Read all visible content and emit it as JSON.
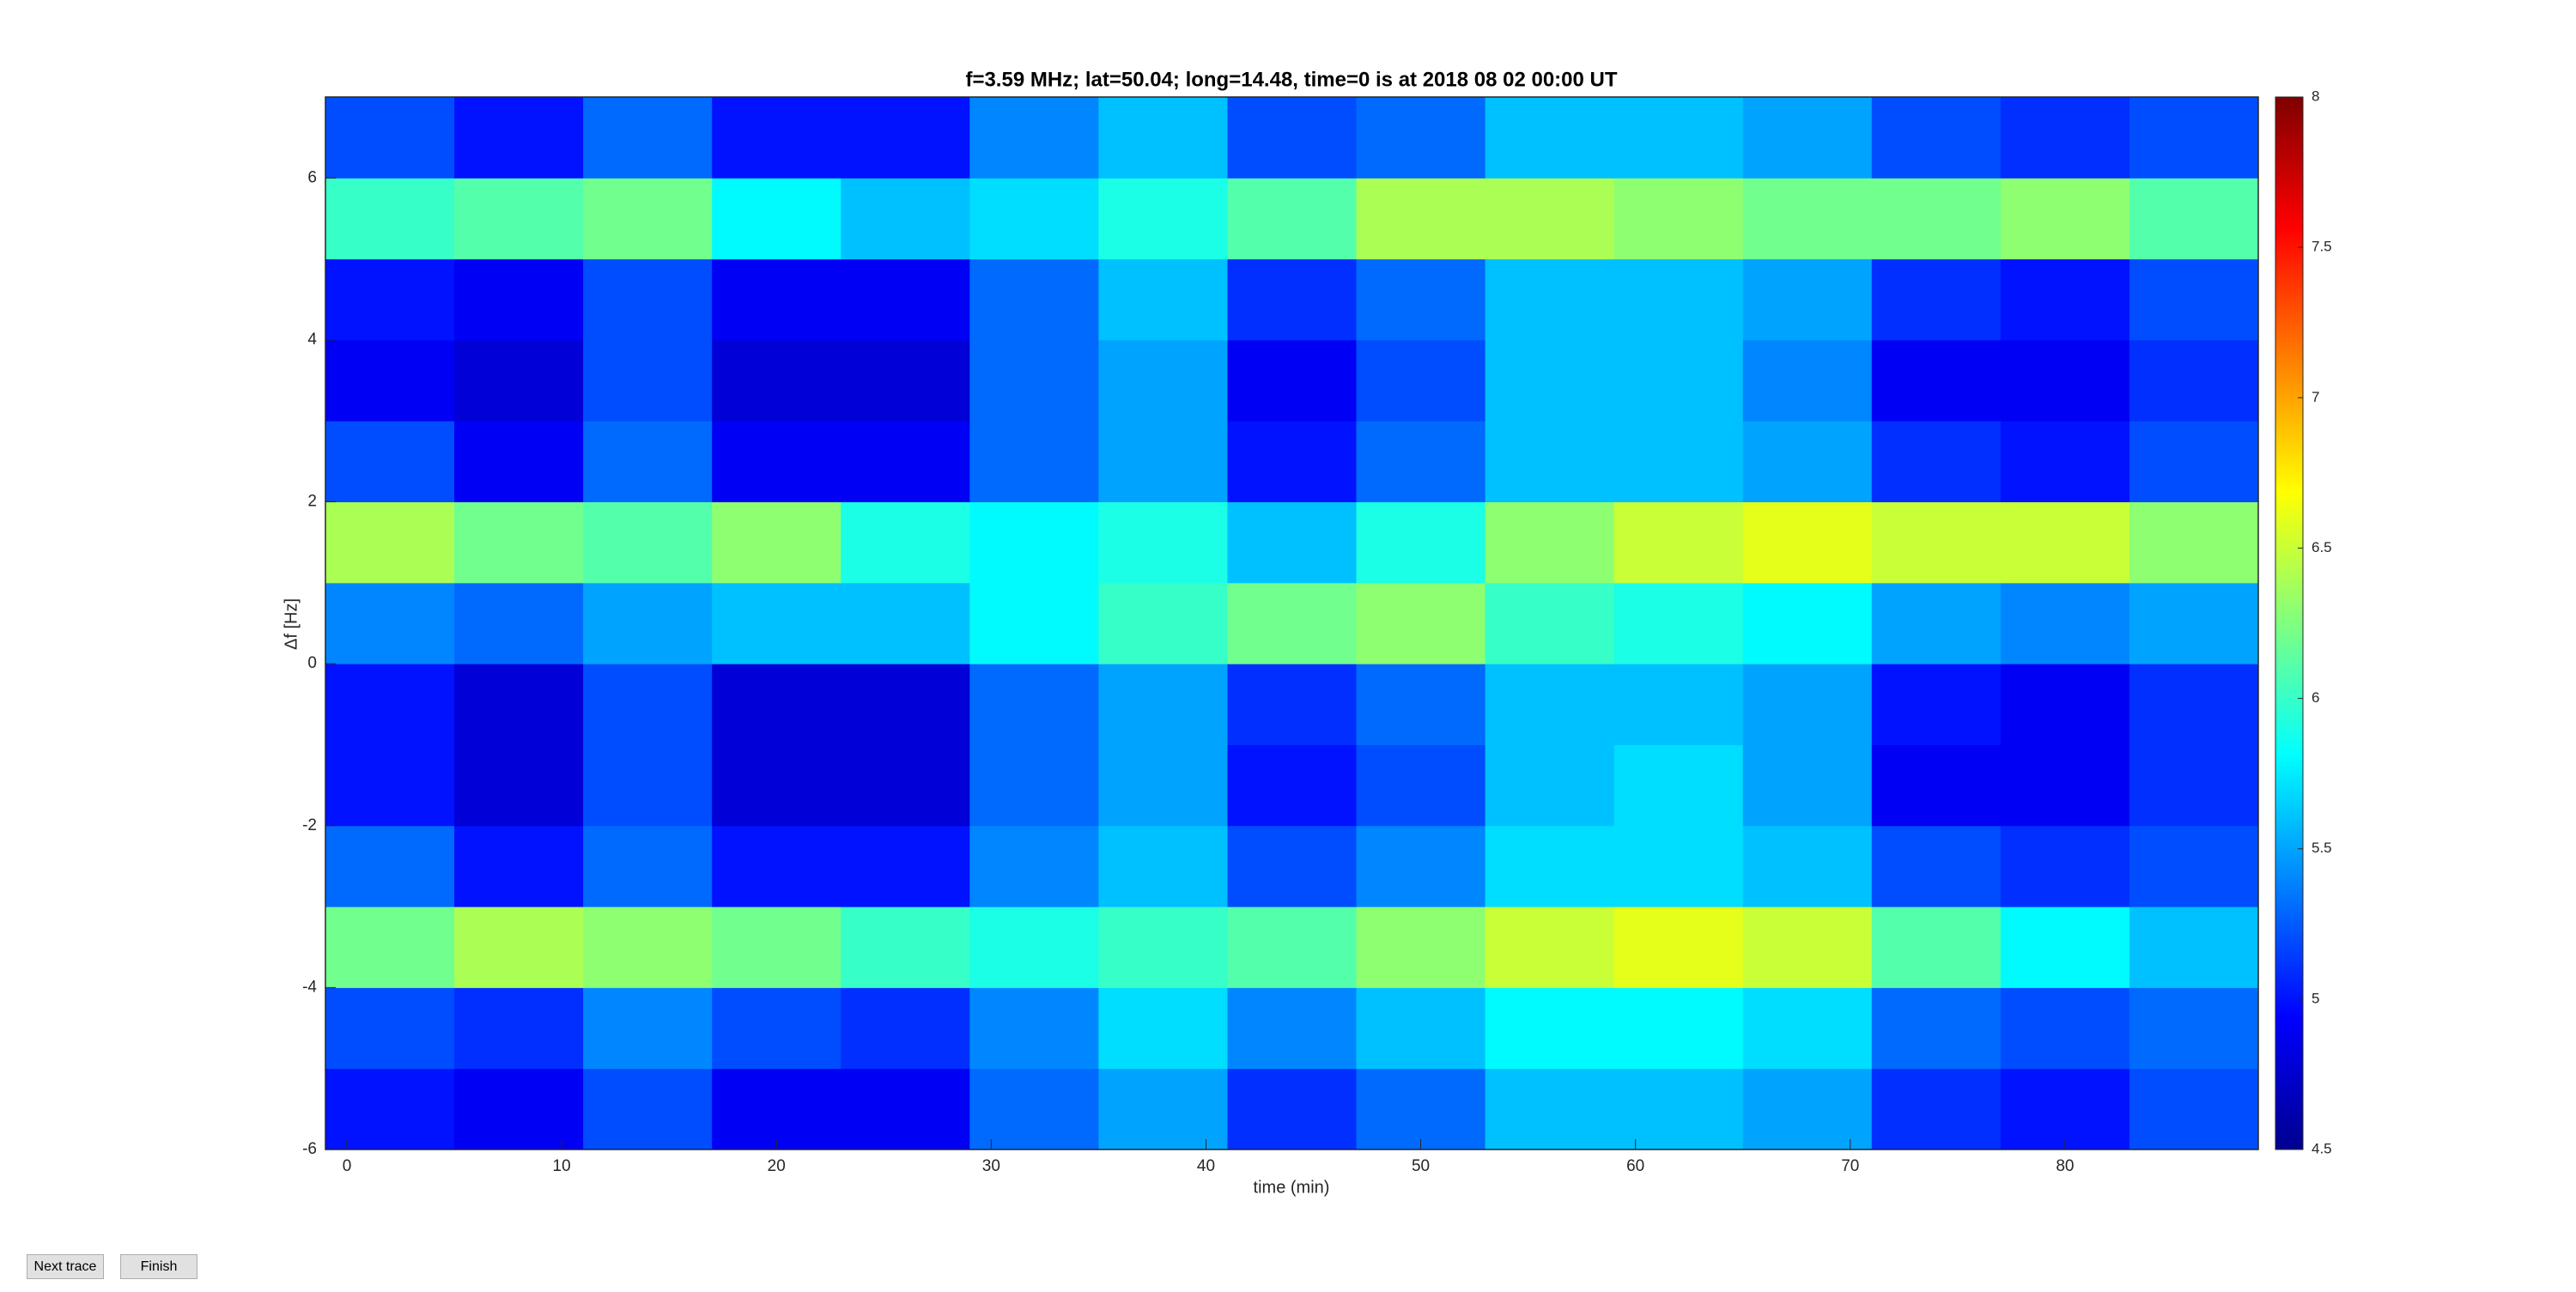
{
  "chart_data": {
    "type": "heatmap",
    "title": "f=3.59 MHz;  lat=50.04; long=14.48, time=0 is at 2018 08 02 00:00 UT",
    "xlabel": "time (min)",
    "ylabel": "Δf [Hz]",
    "xbins": [
      -1,
      5,
      11,
      17,
      23,
      29,
      35,
      41,
      47,
      53,
      59,
      65,
      71,
      77,
      83,
      89
    ],
    "ybins": [
      -6,
      -5,
      -4,
      -3,
      -2,
      -1,
      0,
      1,
      2,
      3,
      4,
      5,
      6,
      7
    ],
    "z": [
      [
        5.0,
        4.9,
        5.2,
        4.9,
        4.9,
        5.3,
        5.5,
        5.1,
        5.3,
        5.6,
        5.6,
        5.5,
        5.1,
        5.0,
        5.2
      ],
      [
        5.2,
        5.1,
        5.4,
        5.2,
        5.1,
        5.4,
        5.7,
        5.4,
        5.6,
        5.8,
        5.8,
        5.7,
        5.3,
        5.2,
        5.3
      ],
      [
        6.2,
        6.4,
        6.3,
        6.2,
        6.0,
        5.9,
        6.0,
        6.1,
        6.3,
        6.5,
        6.6,
        6.5,
        6.1,
        5.8,
        5.6
      ],
      [
        5.3,
        5.0,
        5.3,
        5.0,
        5.0,
        5.4,
        5.6,
        5.2,
        5.4,
        5.7,
        5.7,
        5.6,
        5.2,
        5.1,
        5.2
      ],
      [
        5.0,
        4.8,
        5.2,
        4.8,
        4.8,
        5.3,
        5.5,
        5.0,
        5.2,
        5.6,
        5.7,
        5.5,
        4.9,
        4.9,
        5.1
      ],
      [
        5.0,
        4.8,
        5.2,
        4.8,
        4.8,
        5.3,
        5.5,
        5.1,
        5.3,
        5.6,
        5.6,
        5.5,
        5.0,
        4.9,
        5.1
      ],
      [
        5.4,
        5.3,
        5.5,
        5.6,
        5.6,
        5.8,
        6.0,
        6.2,
        6.3,
        6.0,
        5.9,
        5.8,
        5.5,
        5.4,
        5.5
      ],
      [
        6.4,
        6.2,
        6.1,
        6.3,
        5.9,
        5.8,
        5.9,
        5.6,
        5.9,
        6.3,
        6.5,
        6.6,
        6.5,
        6.5,
        6.3
      ],
      [
        5.2,
        4.9,
        5.3,
        4.9,
        4.9,
        5.3,
        5.5,
        5.0,
        5.3,
        5.6,
        5.6,
        5.5,
        5.1,
        5.0,
        5.2
      ],
      [
        4.9,
        4.8,
        5.2,
        4.8,
        4.8,
        5.3,
        5.5,
        4.9,
        5.2,
        5.6,
        5.6,
        5.4,
        4.9,
        4.9,
        5.1
      ],
      [
        5.0,
        4.9,
        5.2,
        4.9,
        4.9,
        5.3,
        5.6,
        5.1,
        5.3,
        5.6,
        5.6,
        5.5,
        5.1,
        5.0,
        5.2
      ],
      [
        6.0,
        6.1,
        6.2,
        5.8,
        5.6,
        5.7,
        5.9,
        6.1,
        6.4,
        6.4,
        6.3,
        6.2,
        6.2,
        6.3,
        6.1
      ],
      [
        5.2,
        5.0,
        5.3,
        5.0,
        5.0,
        5.4,
        5.6,
        5.2,
        5.3,
        5.6,
        5.6,
        5.5,
        5.2,
        5.1,
        5.2
      ]
    ],
    "xlim": [
      -1,
      89
    ],
    "ylim": [
      -6,
      7
    ],
    "xticks": [
      0,
      10,
      20,
      30,
      40,
      50,
      60,
      70,
      80
    ],
    "yticks": [
      -6,
      -4,
      -2,
      0,
      2,
      4,
      6
    ],
    "colormap": "jet",
    "clim": [
      4.5,
      8
    ],
    "cticks": [
      4.5,
      5,
      5.5,
      6,
      6.5,
      7,
      7.5,
      8
    ]
  },
  "buttons": [
    "Next trace",
    "Finish"
  ]
}
